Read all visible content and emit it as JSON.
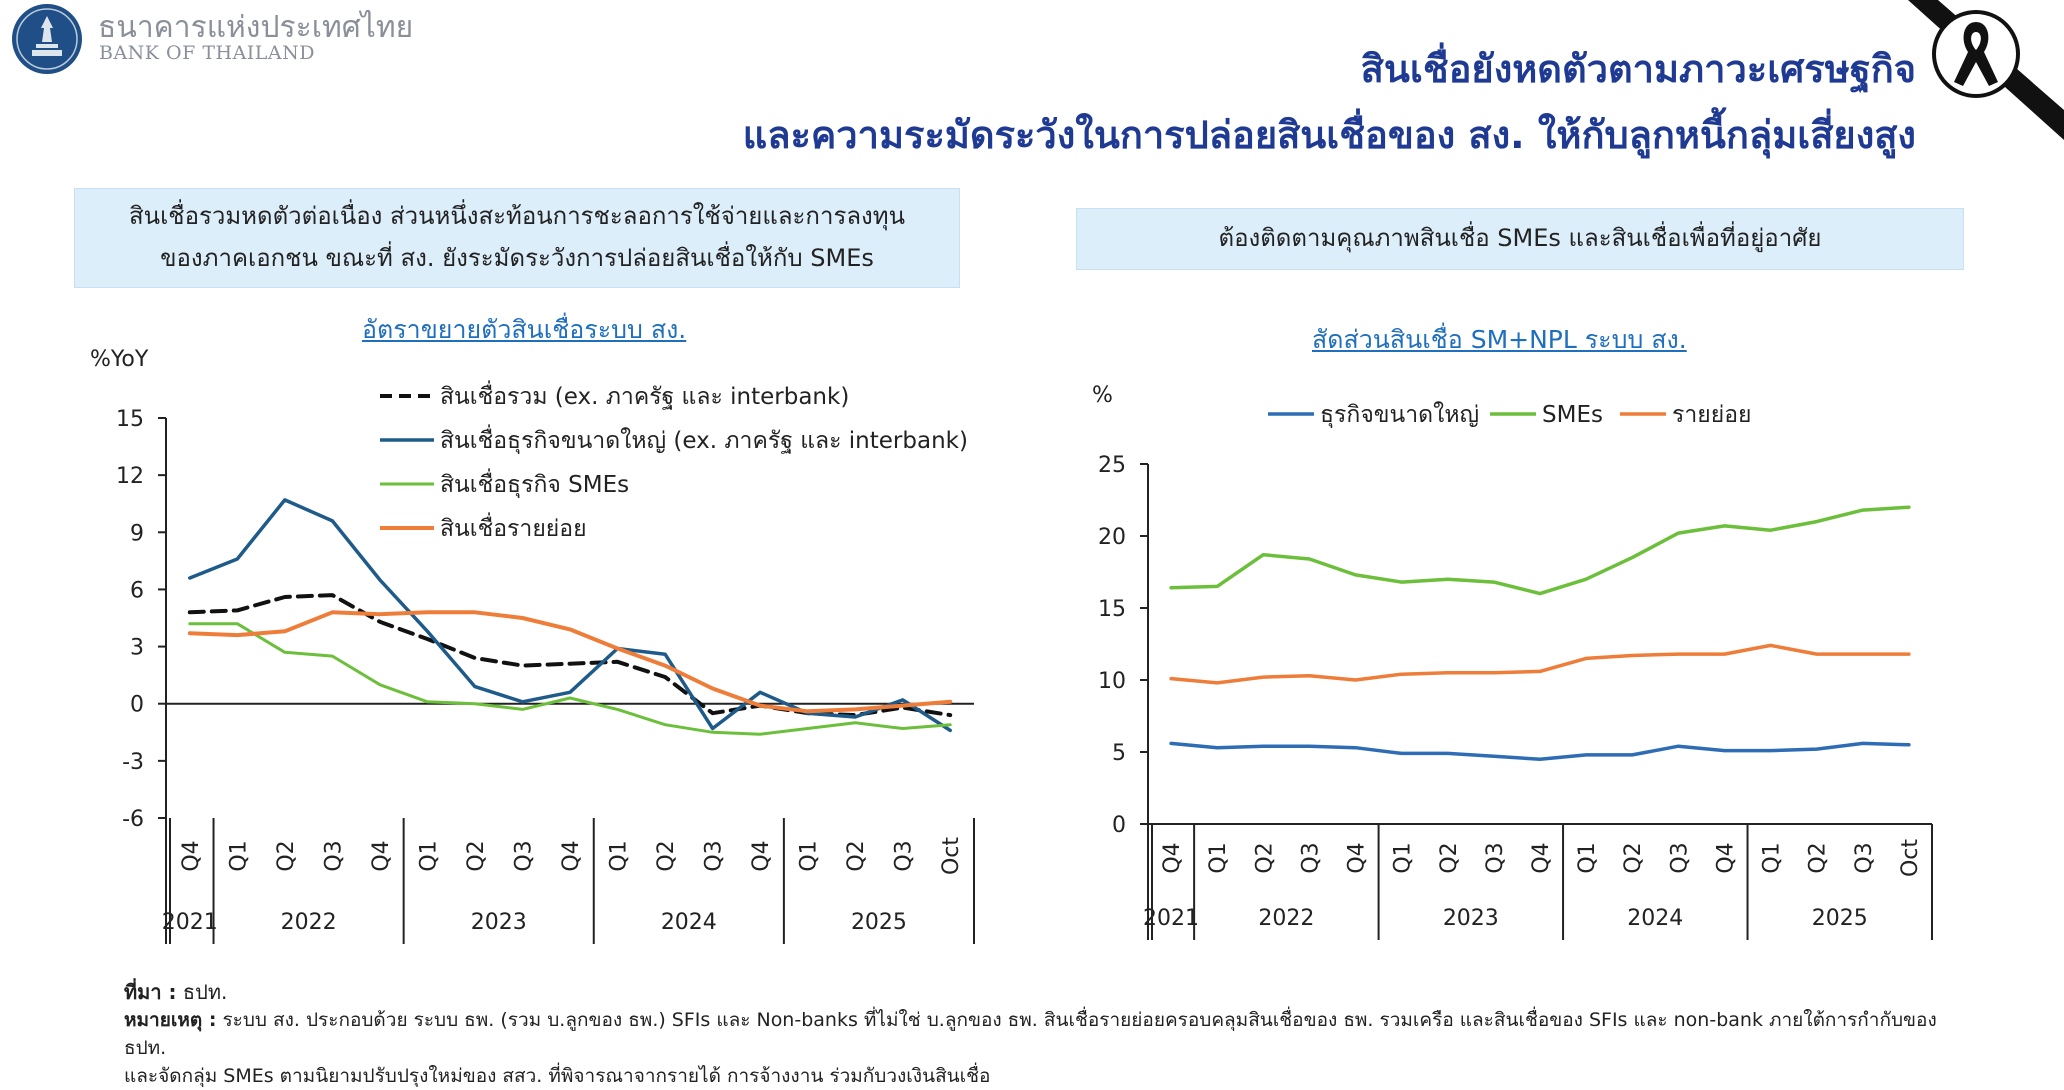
{
  "header": {
    "bank_name_th": "ธนาคารแห่งประเทศไทย",
    "bank_name_en": "BANK OF THAILAND",
    "title_line1": "สินเชื่อยังหดตัวตามภาวะเศรษฐกิจ",
    "title_line2": "และความระมัดระวังในการปล่อยสินเชื่อของ สง. ให้กับลูกหนี้กลุ่มเสี่ยงสูง",
    "logo_icon": "bank-of-thailand-seal-icon",
    "ribbon_icon": "mourning-ribbon-icon"
  },
  "panels": {
    "left_box_line1": "สินเชื่อรวมหดตัวต่อเนื่อง ส่วนหนึ่งสะท้อนการชะลอการใช้จ่ายและการลงทุน",
    "left_box_line2": "ของภาคเอกชน ขณะที่ สง. ยังระมัดระวังการปล่อยสินเชื่อให้กับ SMEs",
    "right_box": "ต้องติดตามคุณภาพสินเชื่อ SMEs และสินเชื่อเพื่อที่อยู่อาศัย"
  },
  "footer": {
    "source_label": "ที่มา :",
    "source_text": " ธปท.",
    "note_label": "หมายเหตุ :",
    "note_text": " ระบบ สง. ประกอบด้วย ระบบ ธพ. (รวม บ.ลูกของ ธพ.) SFIs และ Non-banks ที่ไม่ใช่ บ.ลูกของ ธพ. สินเชื่อรายย่อยครอบคลุมสินเชื่อของ ธพ. รวมเครือ และสินเชื่อของ SFIs และ non-bank ภายใต้การกำกับของ ธปท.",
    "note_line2": "และจัดกลุ่ม SMEs ตามนิยามปรับปรุงใหม่ของ สสว. ที่พิจารณาจากรายได้ การจ้างงาน ร่วมกับวงเงินสินเชื่อ"
  },
  "colors": {
    "title": "#1f3a93",
    "navy": "#1f5b8a",
    "green": "#6cbf3b",
    "orange": "#ee7d3a",
    "black": "#111111",
    "blue": "#2e6db5"
  },
  "chart_data": [
    {
      "type": "line",
      "title": "อัตราขยายตัวสินเชื่อระบบ สง.",
      "ylabel": "%YoY",
      "ylim": [
        -6,
        15
      ],
      "yticks": [
        15,
        12,
        9,
        6,
        3,
        0,
        -3,
        -6
      ],
      "categories": [
        "Q4",
        "Q1",
        "Q2",
        "Q3",
        "Q4",
        "Q1",
        "Q2",
        "Q3",
        "Q4",
        "Q1",
        "Q2",
        "Q3",
        "Q4",
        "Q1",
        "Q2",
        "Q3",
        "Oct"
      ],
      "years": [
        {
          "label": "2021",
          "span": 1
        },
        {
          "label": "2022",
          "span": 4
        },
        {
          "label": "2023",
          "span": 4
        },
        {
          "label": "2024",
          "span": 4
        },
        {
          "label": "2025",
          "span": 4
        }
      ],
      "legend_position": "top-right",
      "series": [
        {
          "name": "สินเชื่อรวม (ex. ภาครัฐ และ interbank)",
          "color": "#111111",
          "dash": true,
          "width": 4,
          "values": [
            4.8,
            4.9,
            5.6,
            5.7,
            4.3,
            3.4,
            2.4,
            2.0,
            2.1,
            2.2,
            1.4,
            -0.5,
            -0.1,
            -0.5,
            -0.6,
            -0.2,
            -0.6
          ]
        },
        {
          "name": "สินเชื่อธุรกิจขนาดใหญ่ (ex. ภาครัฐ และ interbank)",
          "color": "#1f5b8a",
          "dash": false,
          "width": 3.5,
          "values": [
            6.6,
            7.6,
            10.7,
            9.6,
            6.5,
            3.8,
            0.9,
            0.1,
            0.6,
            2.9,
            2.6,
            -1.3,
            0.6,
            -0.5,
            -0.7,
            0.2,
            -1.4
          ]
        },
        {
          "name": "สินเชื่อธุรกิจ SMEs",
          "color": "#6cbf3b",
          "dash": false,
          "width": 3,
          "values": [
            4.2,
            4.2,
            2.7,
            2.5,
            1.0,
            0.1,
            0.0,
            -0.3,
            0.3,
            -0.3,
            -1.1,
            -1.5,
            -1.6,
            -1.3,
            -1.0,
            -1.3,
            -1.1
          ]
        },
        {
          "name": "สินเชื่อรายย่อย",
          "color": "#ee7d3a",
          "dash": false,
          "width": 4,
          "values": [
            3.7,
            3.6,
            3.8,
            4.8,
            4.7,
            4.8,
            4.8,
            4.5,
            3.9,
            2.9,
            2.0,
            0.8,
            -0.1,
            -0.4,
            -0.3,
            -0.1,
            0.1
          ]
        }
      ]
    },
    {
      "type": "line",
      "title": "สัดส่วนสินเชื่อ SM+NPL ระบบ สง.",
      "ylabel": "%",
      "ylim": [
        0,
        25
      ],
      "yticks": [
        25,
        20,
        15,
        10,
        5,
        0
      ],
      "categories": [
        "Q4",
        "Q1",
        "Q2",
        "Q3",
        "Q4",
        "Q1",
        "Q2",
        "Q3",
        "Q4",
        "Q1",
        "Q2",
        "Q3",
        "Q4",
        "Q1",
        "Q2",
        "Q3",
        "Oct"
      ],
      "years": [
        {
          "label": "2021",
          "span": 1
        },
        {
          "label": "2022",
          "span": 4
        },
        {
          "label": "2023",
          "span": 4
        },
        {
          "label": "2024",
          "span": 4
        },
        {
          "label": "2025",
          "span": 4
        }
      ],
      "legend_position": "top",
      "series": [
        {
          "name": "ธุรกิจขนาดใหญ่",
          "color": "#2e6db5",
          "width": 3.5,
          "values": [
            5.6,
            5.3,
            5.4,
            5.4,
            5.3,
            4.9,
            4.9,
            4.7,
            4.5,
            4.8,
            4.8,
            5.4,
            5.1,
            5.1,
            5.2,
            5.6,
            5.5
          ]
        },
        {
          "name": "SMEs",
          "color": "#6cbf3b",
          "width": 3.5,
          "values": [
            16.4,
            16.5,
            18.7,
            18.4,
            17.3,
            16.8,
            17.0,
            16.8,
            16.0,
            17.0,
            18.5,
            20.2,
            20.7,
            20.4,
            21.0,
            21.8,
            22.0
          ]
        },
        {
          "name": "รายย่อย",
          "color": "#ee7d3a",
          "width": 3.5,
          "values": [
            10.1,
            9.8,
            10.2,
            10.3,
            10.0,
            10.4,
            10.5,
            10.5,
            10.6,
            11.5,
            11.7,
            11.8,
            11.8,
            12.4,
            11.8,
            11.8,
            11.8
          ]
        }
      ]
    }
  ]
}
